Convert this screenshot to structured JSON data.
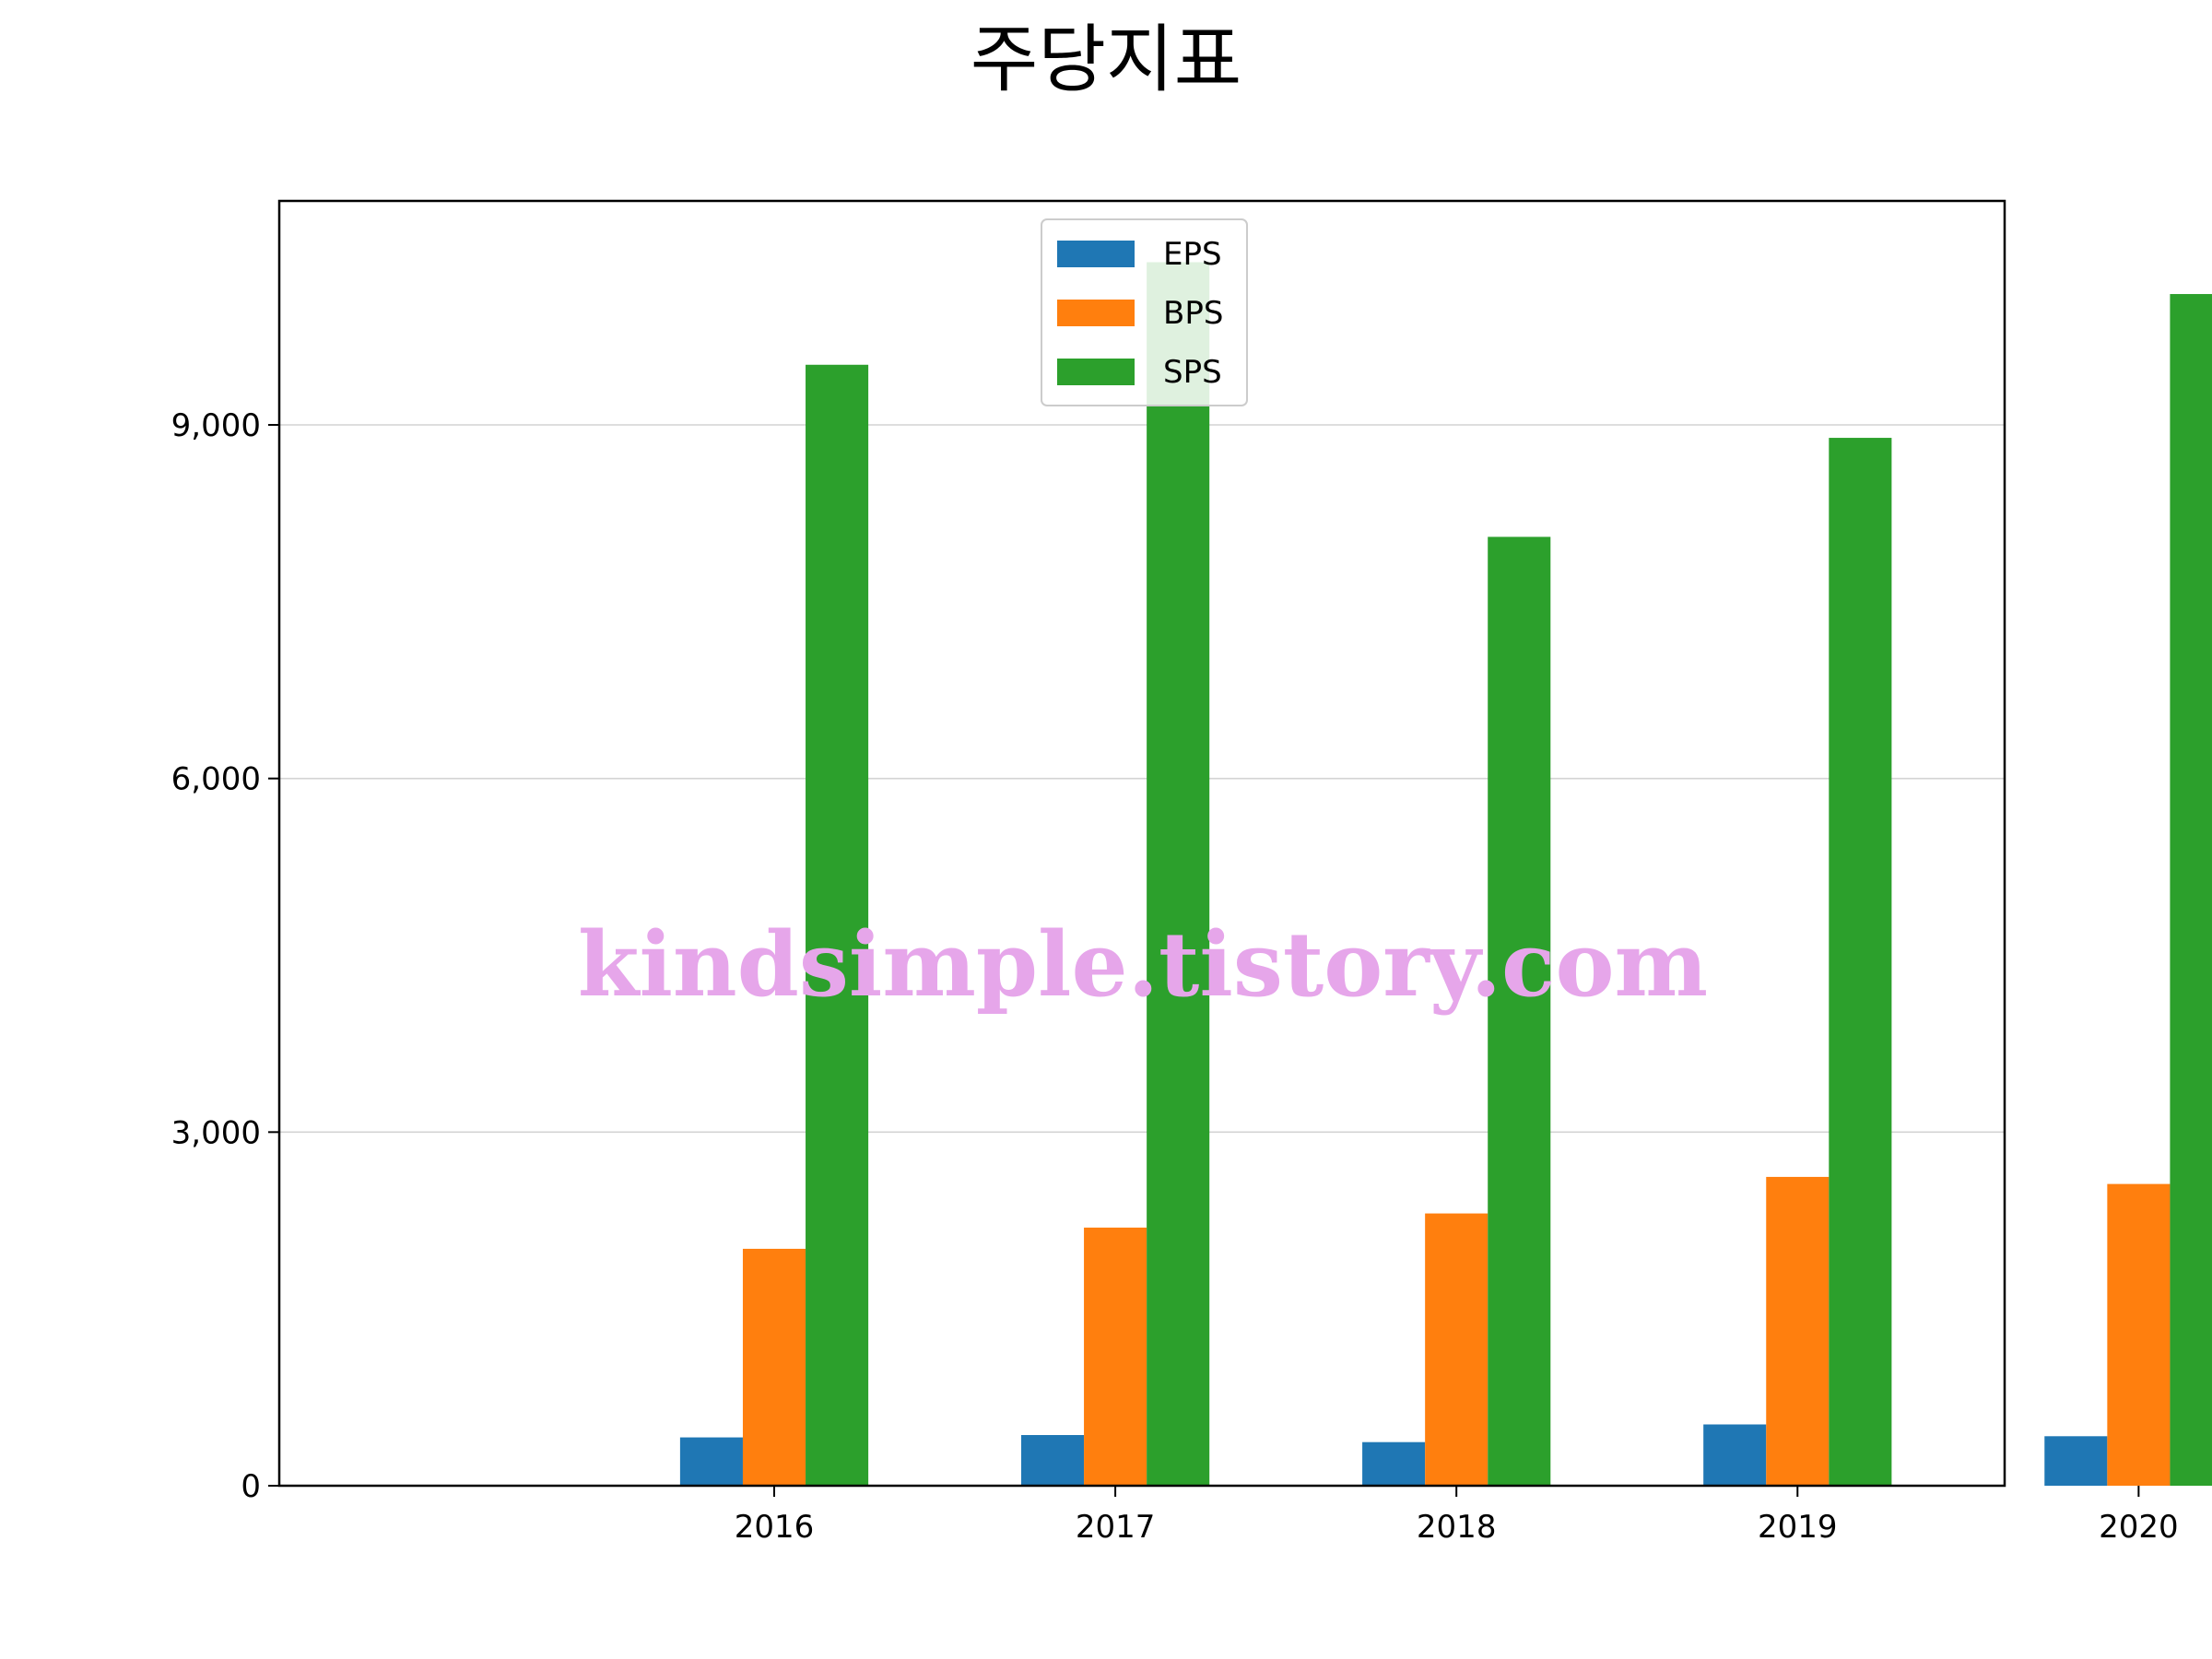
{
  "chart_data": {
    "type": "bar",
    "title": "주당지표",
    "categories": [
      "2016",
      "2017",
      "2018",
      "2019",
      "2020"
    ],
    "series": [
      {
        "name": "EPS",
        "color": "#1f77b4",
        "values": [
          410,
          430,
          370,
          520,
          420
        ]
      },
      {
        "name": "BPS",
        "color": "#ff7f0e",
        "values": [
          2010,
          2190,
          2310,
          2620,
          2560
        ]
      },
      {
        "name": "SPS",
        "color": "#2ca02c",
        "values": [
          9510,
          10380,
          8050,
          8890,
          10110
        ]
      }
    ],
    "ylim": [
      0,
      10900
    ],
    "yticks": [
      0,
      3000,
      6000,
      9000
    ],
    "ytick_labels": [
      "0",
      "3,000",
      "6,000",
      "9,000"
    ],
    "grid": "horizontal",
    "legend_position": "upper-center",
    "watermark": "kindsimple.tistory.com",
    "watermark_color": "#e6a6ea"
  }
}
